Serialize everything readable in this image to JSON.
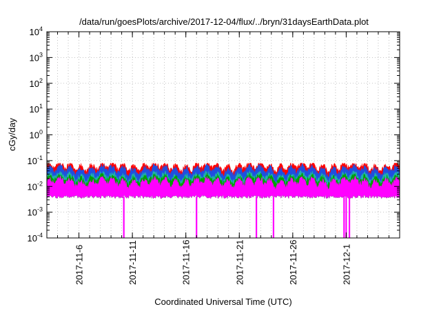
{
  "chart_data": {
    "type": "area",
    "title": "/data/run/goesPlots/archive/2017-12-04/flux/../bryn/31daysEarthData.plot",
    "xlabel": "Coordinated Universal Time (UTC)",
    "ylabel": "cGy/day",
    "yscale": "log",
    "ylim": [
      0.0001,
      10000
    ],
    "y_tick_labels": [
      {
        "base": "10",
        "exp": "-4"
      },
      {
        "base": "10",
        "exp": "-3"
      },
      {
        "base": "10",
        "exp": "-2"
      },
      {
        "base": "10",
        "exp": "-1"
      },
      {
        "base": "10",
        "exp": "0"
      },
      {
        "base": "10",
        "exp": "1"
      },
      {
        "base": "10",
        "exp": "2"
      },
      {
        "base": "10",
        "exp": "3"
      },
      {
        "base": "10",
        "exp": "4"
      }
    ],
    "xlim": [
      "2017-11-03",
      "2017-12-06"
    ],
    "x_tick_labels": [
      "2017-11-6",
      "2017-11-11",
      "2017-11-16",
      "2017-11-21",
      "2017-11-26",
      "2017-12-1"
    ],
    "x_tick_dates": [
      "2017-11-06",
      "2017-11-11",
      "2017-11-16",
      "2017-11-21",
      "2017-11-26",
      "2017-12-01"
    ],
    "grid": true,
    "series": [
      {
        "color": "#ff0000",
        "typical_upper": 0.06,
        "max": 0.08
      },
      {
        "color": "#1f4fe0",
        "typical_upper": 0.045
      },
      {
        "color": "#20b2aa",
        "typical_upper": 0.025
      },
      {
        "color": "#00a000",
        "typical_upper": 0.02
      },
      {
        "color": "#ff00ff",
        "typical_upper": 0.015,
        "typical_lower": 0.004
      }
    ],
    "dropouts": [
      {
        "date": "2017-11-10.2",
        "min": 0.0001
      },
      {
        "date": "2017-11-17.0",
        "min": 0.0001
      },
      {
        "date": "2017-11-22.6",
        "min": 0.0001
      },
      {
        "date": "2017-11-24.2",
        "min": 0.0001
      },
      {
        "date": "2017-11-30.8",
        "min": 0.0001
      },
      {
        "date": "2017-12-01.0",
        "min": 0.0001
      },
      {
        "date": "2017-12-01.3",
        "min": 0.0001
      }
    ]
  }
}
